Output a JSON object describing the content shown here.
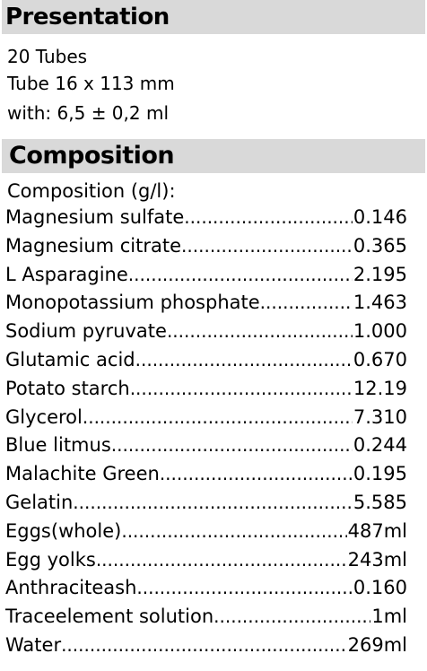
{
  "presentation": {
    "title": "Presentation",
    "lines": [
      "20 Tubes",
      "Tube 16 x 113 mm",
      "with: 6,5 ± 0,2 ml"
    ]
  },
  "composition": {
    "title": "Composition",
    "subtitle": "Composition (g/l):",
    "items": [
      {
        "name": "Magnesium sulfate",
        "amount": "0.146"
      },
      {
        "name": "Magnesium citrate",
        "amount": "0.365"
      },
      {
        "name": "L Asparagine",
        "amount": "2.195"
      },
      {
        "name": "Monopotassium phosphate",
        "amount": "1.463"
      },
      {
        "name": "Sodium pyruvate",
        "amount": "1.000"
      },
      {
        "name": "Glutamic acid ",
        "amount": "0.670"
      },
      {
        "name": "Potato starch",
        "amount": "12.19"
      },
      {
        "name": "Glycerol ",
        "amount": "7.310"
      },
      {
        "name": "Blue litmus",
        "amount": "0.244"
      },
      {
        "name": "Malachite Green",
        "amount": "0.195"
      },
      {
        "name": "Gelatin",
        "amount": "5.585"
      },
      {
        "name": "Eggs(whole)",
        "amount": "487ml"
      },
      {
        "name": "Egg yolks",
        "amount": "243ml"
      },
      {
        "name": "Anthraciteash",
        "amount": "0.160"
      },
      {
        "name": "Traceelement solution",
        "amount": "1ml"
      },
      {
        "name": "Water",
        "amount": "269ml"
      }
    ]
  }
}
